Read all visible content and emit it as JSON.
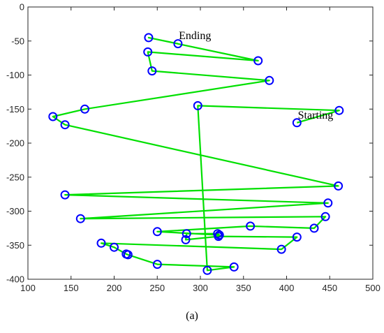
{
  "chart_data": {
    "type": "scatter",
    "title": "",
    "xlabel": "",
    "ylabel": "",
    "xlim": [
      100,
      500
    ],
    "ylim": [
      -400,
      0
    ],
    "x_ticks": [
      100,
      150,
      200,
      250,
      300,
      350,
      400,
      450,
      500
    ],
    "y_ticks": [
      0,
      -50,
      -100,
      -150,
      -200,
      -250,
      -300,
      -350,
      -400
    ],
    "grid": false,
    "connected": true,
    "series": [
      {
        "points": [
          [
            412,
            -170
          ],
          [
            461,
            -152
          ],
          [
            297,
            -145
          ],
          [
            308,
            -387
          ],
          [
            339,
            -382
          ],
          [
            250,
            -378
          ],
          [
            216,
            -364
          ],
          [
            214,
            -363
          ],
          [
            200,
            -353
          ],
          [
            185,
            -347
          ],
          [
            394,
            -356
          ],
          [
            412,
            -338
          ],
          [
            321,
            -337
          ],
          [
            283,
            -342
          ],
          [
            284,
            -333
          ],
          [
            320,
            -333
          ],
          [
            322,
            -335
          ],
          [
            250,
            -330
          ],
          [
            358,
            -322
          ],
          [
            432,
            -325
          ],
          [
            445,
            -308
          ],
          [
            161,
            -311
          ],
          [
            448,
            -288
          ],
          [
            143,
            -276
          ],
          [
            460,
            -263
          ],
          [
            143,
            -173
          ],
          [
            129,
            -161
          ],
          [
            166,
            -150
          ],
          [
            380,
            -108
          ],
          [
            244,
            -94
          ],
          [
            239,
            -66
          ],
          [
            367,
            -79
          ],
          [
            240,
            -45
          ],
          [
            274,
            -54
          ]
        ]
      }
    ],
    "annotations": [
      {
        "text": "Ending",
        "x": 275,
        "y": -47
      },
      {
        "text": "Starting",
        "x": 413,
        "y": -164
      }
    ],
    "colors": {
      "line": "#00e000",
      "marker": "#0000ff",
      "axis": "#262626"
    }
  },
  "caption": "(a)"
}
